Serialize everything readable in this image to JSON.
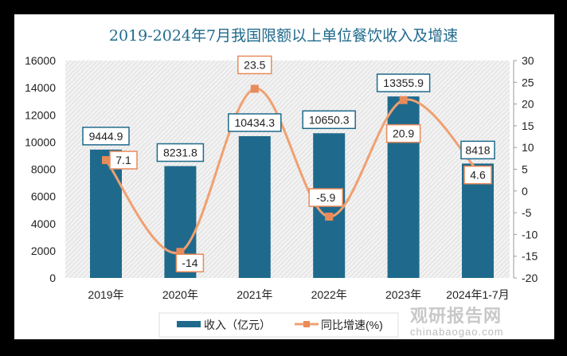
{
  "chart_data": {
    "type": "bar+line",
    "title": "2019-2024年7月我国限额以上单位餐饮收入及增速",
    "categories": [
      "2019年",
      "2020年",
      "2021年",
      "2022年",
      "2023年",
      "2024年1-7月"
    ],
    "series": [
      {
        "name": "收入（亿元）",
        "type": "bar",
        "axis": "left",
        "values": [
          9444.9,
          8231.8,
          10434.3,
          10650.3,
          13355.9,
          8418
        ],
        "labels": [
          "9444.9",
          "8231.8",
          "10434.3",
          "10650.3",
          "13355.9",
          "8418"
        ],
        "color": "#1f6a8c"
      },
      {
        "name": "同比增速(%)",
        "type": "line",
        "axis": "right",
        "values": [
          7.1,
          -14,
          23.5,
          -5.9,
          20.9,
          4.6
        ],
        "labels": [
          "7.1",
          "-14",
          "23.5",
          "-5.9",
          "20.9",
          "4.6"
        ],
        "color": "#f0a070"
      }
    ],
    "left_axis": {
      "range": [
        0,
        16000
      ],
      "ticks": [
        "0",
        "2000",
        "4000",
        "6000",
        "8000",
        "10000",
        "12000",
        "14000",
        "16000"
      ]
    },
    "right_axis": {
      "range": [
        -20,
        30
      ],
      "ticks": [
        "-20",
        "-15",
        "-10",
        "-5",
        "0",
        "5",
        "10",
        "15",
        "20",
        "25",
        "30"
      ]
    },
    "legend": "bottom"
  },
  "watermark": {
    "text": "观研报告网",
    "url": "chinabaogao.com"
  }
}
